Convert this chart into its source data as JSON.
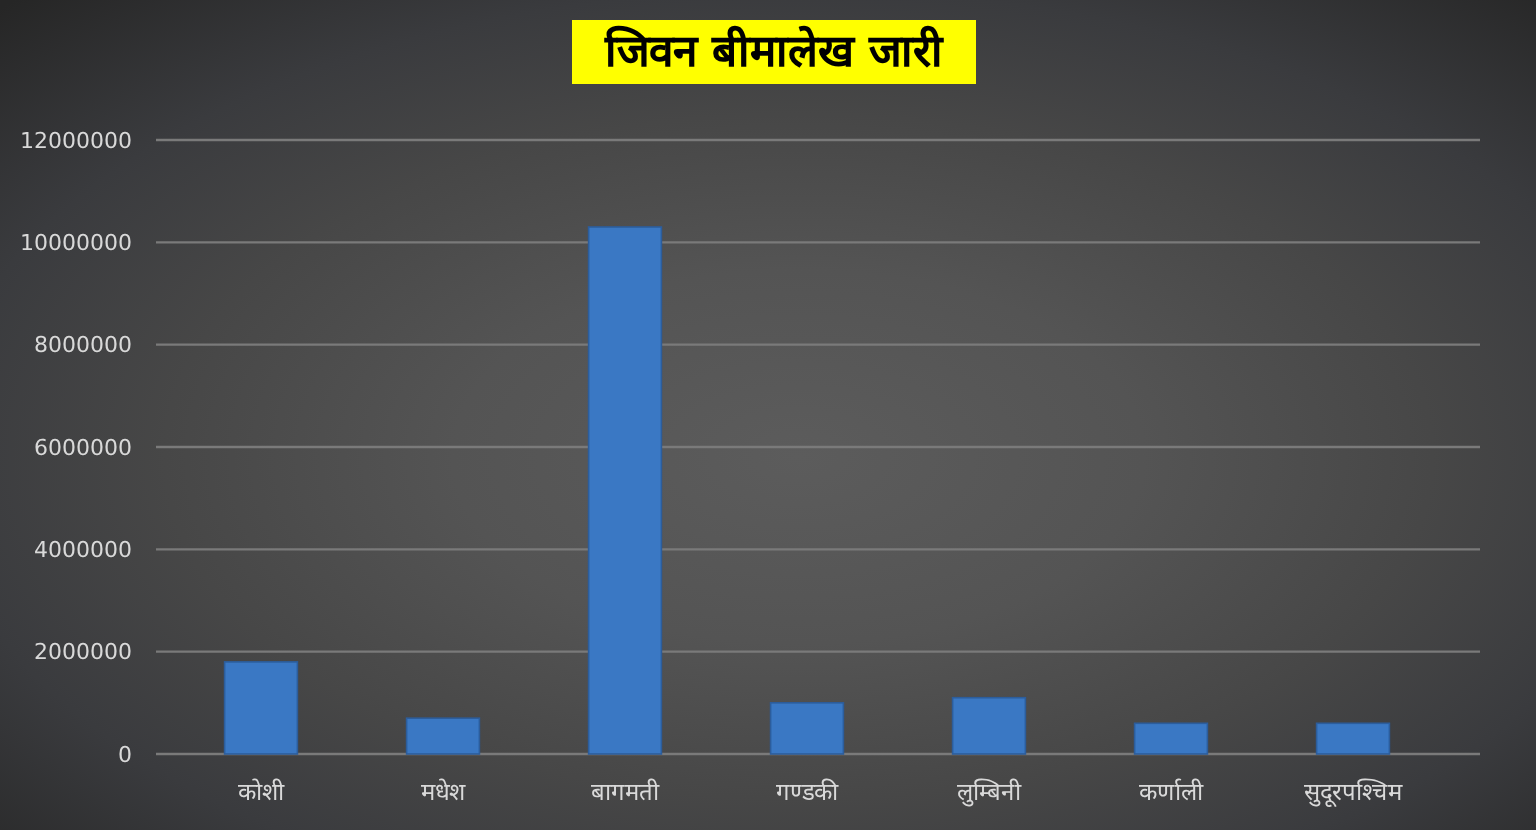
{
  "chart_data": {
    "type": "bar",
    "title": "जिवन बीमालेख जारी",
    "categories": [
      "कोशी",
      "मधेश",
      "बागमती",
      "गण्डकी",
      "लुम्बिनी",
      "कर्णाली",
      "सुदूरपश्चिम"
    ],
    "values": [
      1800000,
      700000,
      10300000,
      1000000,
      1100000,
      600000,
      600000
    ],
    "color": "#3a78c4",
    "ylim": [
      0,
      12000000
    ],
    "yticks": [
      0,
      2000000,
      4000000,
      6000000,
      8000000,
      10000000,
      12000000
    ],
    "grid": "y"
  }
}
